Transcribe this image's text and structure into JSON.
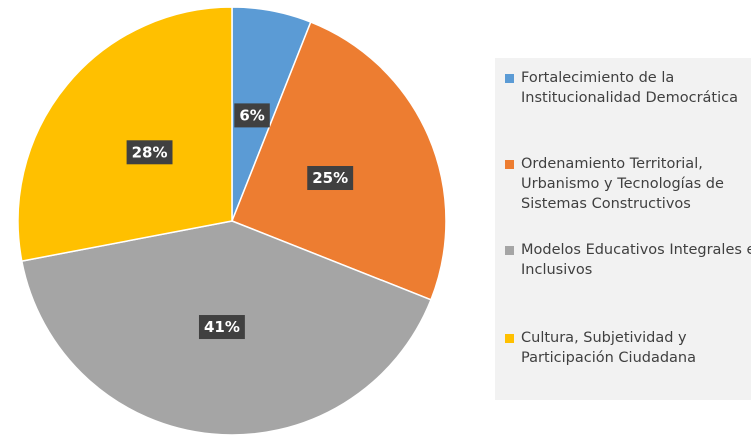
{
  "chart_data": {
    "type": "pie",
    "categories": [
      "Fortalecimiento de la Institucionalidad Democrática",
      "Ordenamiento Territorial, Urbanismo y Tecnologías de Sistemas Constructivos",
      "Modelos Educativos Integrales e Inclusivos",
      "Cultura, Subjetividad y Participación Ciudadana"
    ],
    "values": [
      6,
      25,
      41,
      28
    ],
    "value_labels": [
      "6%",
      "25%",
      "41%",
      "28%"
    ],
    "colors": [
      "#5b9bd5",
      "#ed7d31",
      "#a5a5a5",
      "#ffc000"
    ],
    "legend": "right"
  }
}
